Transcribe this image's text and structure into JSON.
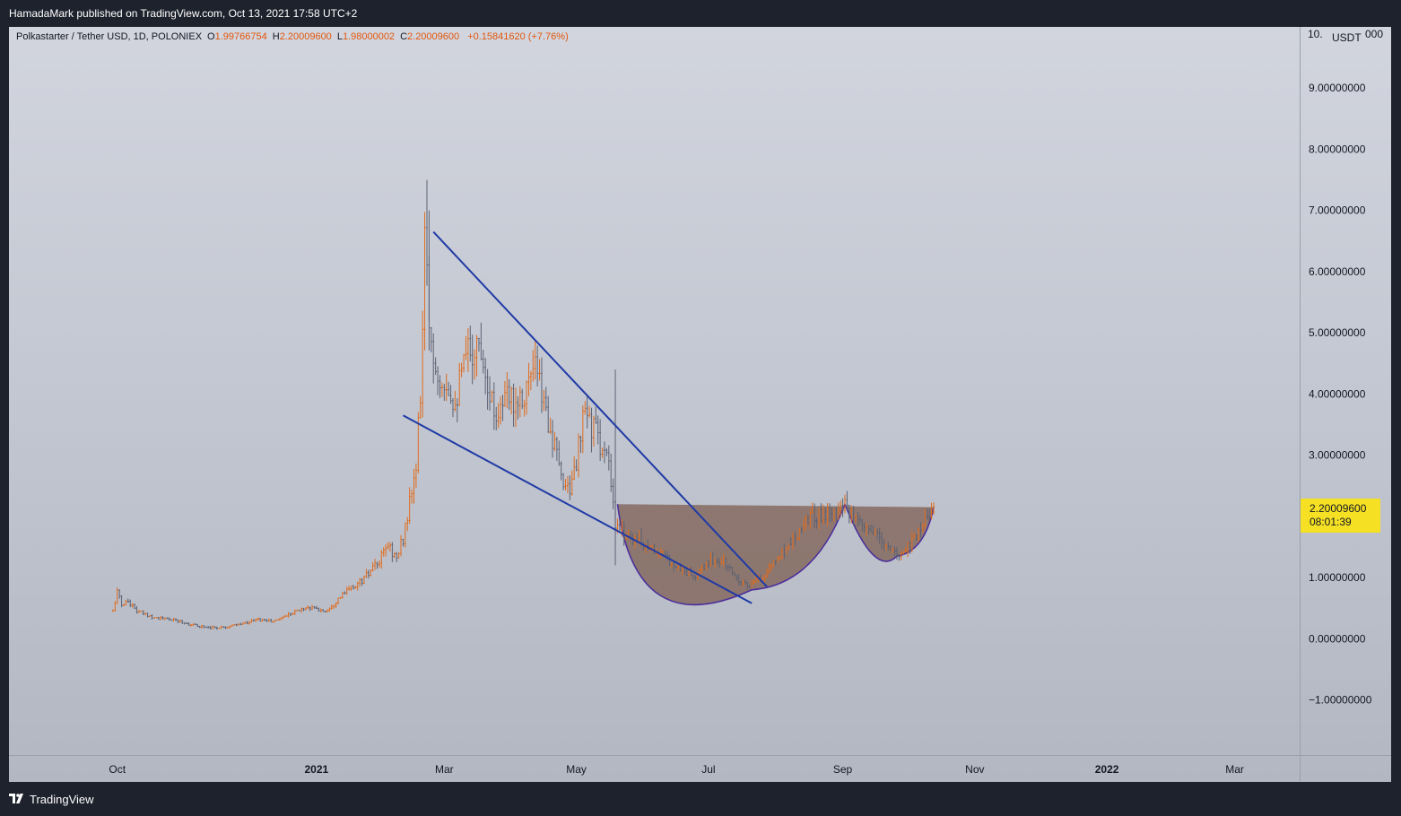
{
  "header": {
    "publish_line": "HamadaMark published on TradingView.com, Oct 13, 2021 17:58 UTC+2"
  },
  "legend": {
    "symbol": "Polkastarter / Tether USD, 1D, POLONIEX",
    "open_label": "O",
    "open_value": "1.99766754",
    "high_label": "H",
    "high_value": "2.20009600",
    "low_label": "L",
    "low_value": "1.98000002",
    "close_label": "C",
    "close_value": "2.20009600",
    "change": "+0.15841620 (+7.76%)"
  },
  "price_axis": {
    "unit": "USDT",
    "top_label": "10.",
    "top_label_end": "000"
  },
  "price_tag": {
    "price": "2.20009600",
    "countdown": "08:01:39"
  },
  "footer": {
    "brand": "TradingView"
  },
  "colors": {
    "up": "#e06b1d",
    "down": "#5c6273",
    "trendline": "#1f3aa6",
    "cup_fill": "#7a5a4c",
    "cup_stroke": "#4b2f9c",
    "price_tag": "#f5e024",
    "accent_change": "#e2570b"
  },
  "chart_data": {
    "type": "candlestick",
    "title": "Polkastarter / Tether USD, 1D, POLONIEX",
    "ylabel": "USDT",
    "ylim": [
      -1.9,
      10.0
    ],
    "y_ticks": [
      {
        "value": 9,
        "label": "9.00000000"
      },
      {
        "value": 8,
        "label": "8.00000000"
      },
      {
        "value": 7,
        "label": "7.00000000"
      },
      {
        "value": 6,
        "label": "6.00000000"
      },
      {
        "value": 5,
        "label": "5.00000000"
      },
      {
        "value": 4,
        "label": "4.00000000"
      },
      {
        "value": 3,
        "label": "3.00000000"
      },
      {
        "value": 1,
        "label": "1.00000000"
      },
      {
        "value": 0,
        "label": "0.00000000"
      },
      {
        "value": -1,
        "label": "−1.00000000"
      }
    ],
    "x_range": [
      "2020-08-12",
      "2022-03-31"
    ],
    "x_ticks": [
      {
        "date": "2020-10-01",
        "label": "Oct",
        "bold": false
      },
      {
        "date": "2021-01-01",
        "label": "2021",
        "bold": true
      },
      {
        "date": "2021-03-01",
        "label": "Mar",
        "bold": false
      },
      {
        "date": "2021-05-01",
        "label": "May",
        "bold": false
      },
      {
        "date": "2021-07-01",
        "label": "Jul",
        "bold": false
      },
      {
        "date": "2021-09-01",
        "label": "Sep",
        "bold": false
      },
      {
        "date": "2021-11-01",
        "label": "Nov",
        "bold": false
      },
      {
        "date": "2022-01-01",
        "label": "2022",
        "bold": true
      },
      {
        "date": "2022-03-01",
        "label": "Mar",
        "bold": false
      }
    ],
    "price_path": [
      [
        "2020-09-29",
        0.45
      ],
      [
        "2020-10-01",
        0.78
      ],
      [
        "2020-10-03",
        0.55
      ],
      [
        "2020-10-06",
        0.62
      ],
      [
        "2020-10-10",
        0.45
      ],
      [
        "2020-10-18",
        0.35
      ],
      [
        "2020-10-28",
        0.3
      ],
      [
        "2020-11-05",
        0.22
      ],
      [
        "2020-11-15",
        0.18
      ],
      [
        "2020-11-25",
        0.22
      ],
      [
        "2020-12-05",
        0.32
      ],
      [
        "2020-12-12",
        0.28
      ],
      [
        "2020-12-20",
        0.42
      ],
      [
        "2020-12-28",
        0.52
      ],
      [
        "2021-01-05",
        0.45
      ],
      [
        "2021-01-14",
        0.75
      ],
      [
        "2021-01-22",
        0.95
      ],
      [
        "2021-01-30",
        1.25
      ],
      [
        "2021-02-03",
        1.55
      ],
      [
        "2021-02-07",
        1.3
      ],
      [
        "2021-02-10",
        1.65
      ],
      [
        "2021-02-13",
        2.2
      ],
      [
        "2021-02-16",
        2.8
      ],
      [
        "2021-02-18",
        4.0
      ],
      [
        "2021-02-20",
        6.4
      ],
      [
        "2021-02-22",
        5.2
      ],
      [
        "2021-02-25",
        4.4
      ],
      [
        "2021-03-01",
        4.3
      ],
      [
        "2021-03-06",
        3.9
      ],
      [
        "2021-03-12",
        4.7
      ],
      [
        "2021-03-18",
        4.8
      ],
      [
        "2021-03-24",
        3.7
      ],
      [
        "2021-03-30",
        3.9
      ],
      [
        "2021-04-06",
        4.0
      ],
      [
        "2021-04-12",
        4.4
      ],
      [
        "2021-04-18",
        3.6
      ],
      [
        "2021-04-24",
        2.6
      ],
      [
        "2021-04-29",
        2.5
      ],
      [
        "2021-05-05",
        3.7
      ],
      [
        "2021-05-11",
        3.3
      ],
      [
        "2021-05-16",
        2.8
      ],
      [
        "2021-05-19",
        1.8
      ],
      [
        "2021-05-25",
        1.7
      ],
      [
        "2021-06-02",
        1.55
      ],
      [
        "2021-06-10",
        1.35
      ],
      [
        "2021-06-18",
        1.15
      ],
      [
        "2021-06-25",
        1.0
      ],
      [
        "2021-07-02",
        1.3
      ],
      [
        "2021-07-08",
        1.25
      ],
      [
        "2021-07-14",
        1.0
      ],
      [
        "2021-07-20",
        0.85
      ],
      [
        "2021-07-28",
        1.1
      ],
      [
        "2021-08-06",
        1.5
      ],
      [
        "2021-08-16",
        2.0
      ],
      [
        "2021-08-26",
        2.05
      ],
      [
        "2021-09-02",
        2.15
      ],
      [
        "2021-09-08",
        1.85
      ],
      [
        "2021-09-14",
        1.75
      ],
      [
        "2021-09-20",
        1.55
      ],
      [
        "2021-09-26",
        1.35
      ],
      [
        "2021-10-02",
        1.55
      ],
      [
        "2021-10-08",
        1.9
      ],
      [
        "2021-10-13",
        2.2
      ]
    ],
    "spikes": [
      {
        "date": "2021-02-21",
        "high": 7.5
      },
      {
        "date": "2021-02-22",
        "high": 7.0
      },
      {
        "date": "2021-05-19",
        "high": 4.4,
        "low": 1.2
      }
    ],
    "drawings": {
      "upper_trendline": {
        "from": [
          "2021-02-24",
          6.65
        ],
        "to": [
          "2021-07-28",
          0.85
        ]
      },
      "lower_trendline": {
        "from": [
          "2021-02-10",
          3.65
        ],
        "to": [
          "2021-07-21",
          0.58
        ]
      },
      "cup_rim": {
        "from": [
          "2021-05-20",
          2.2
        ],
        "to": [
          "2021-10-13",
          2.15
        ]
      },
      "cup_bottom": [
        "2021-07-21",
        0.8
      ],
      "cup_right_rim": [
        "2021-09-02",
        2.2
      ],
      "handle_bottom": [
        "2021-09-26",
        1.35
      ]
    }
  }
}
